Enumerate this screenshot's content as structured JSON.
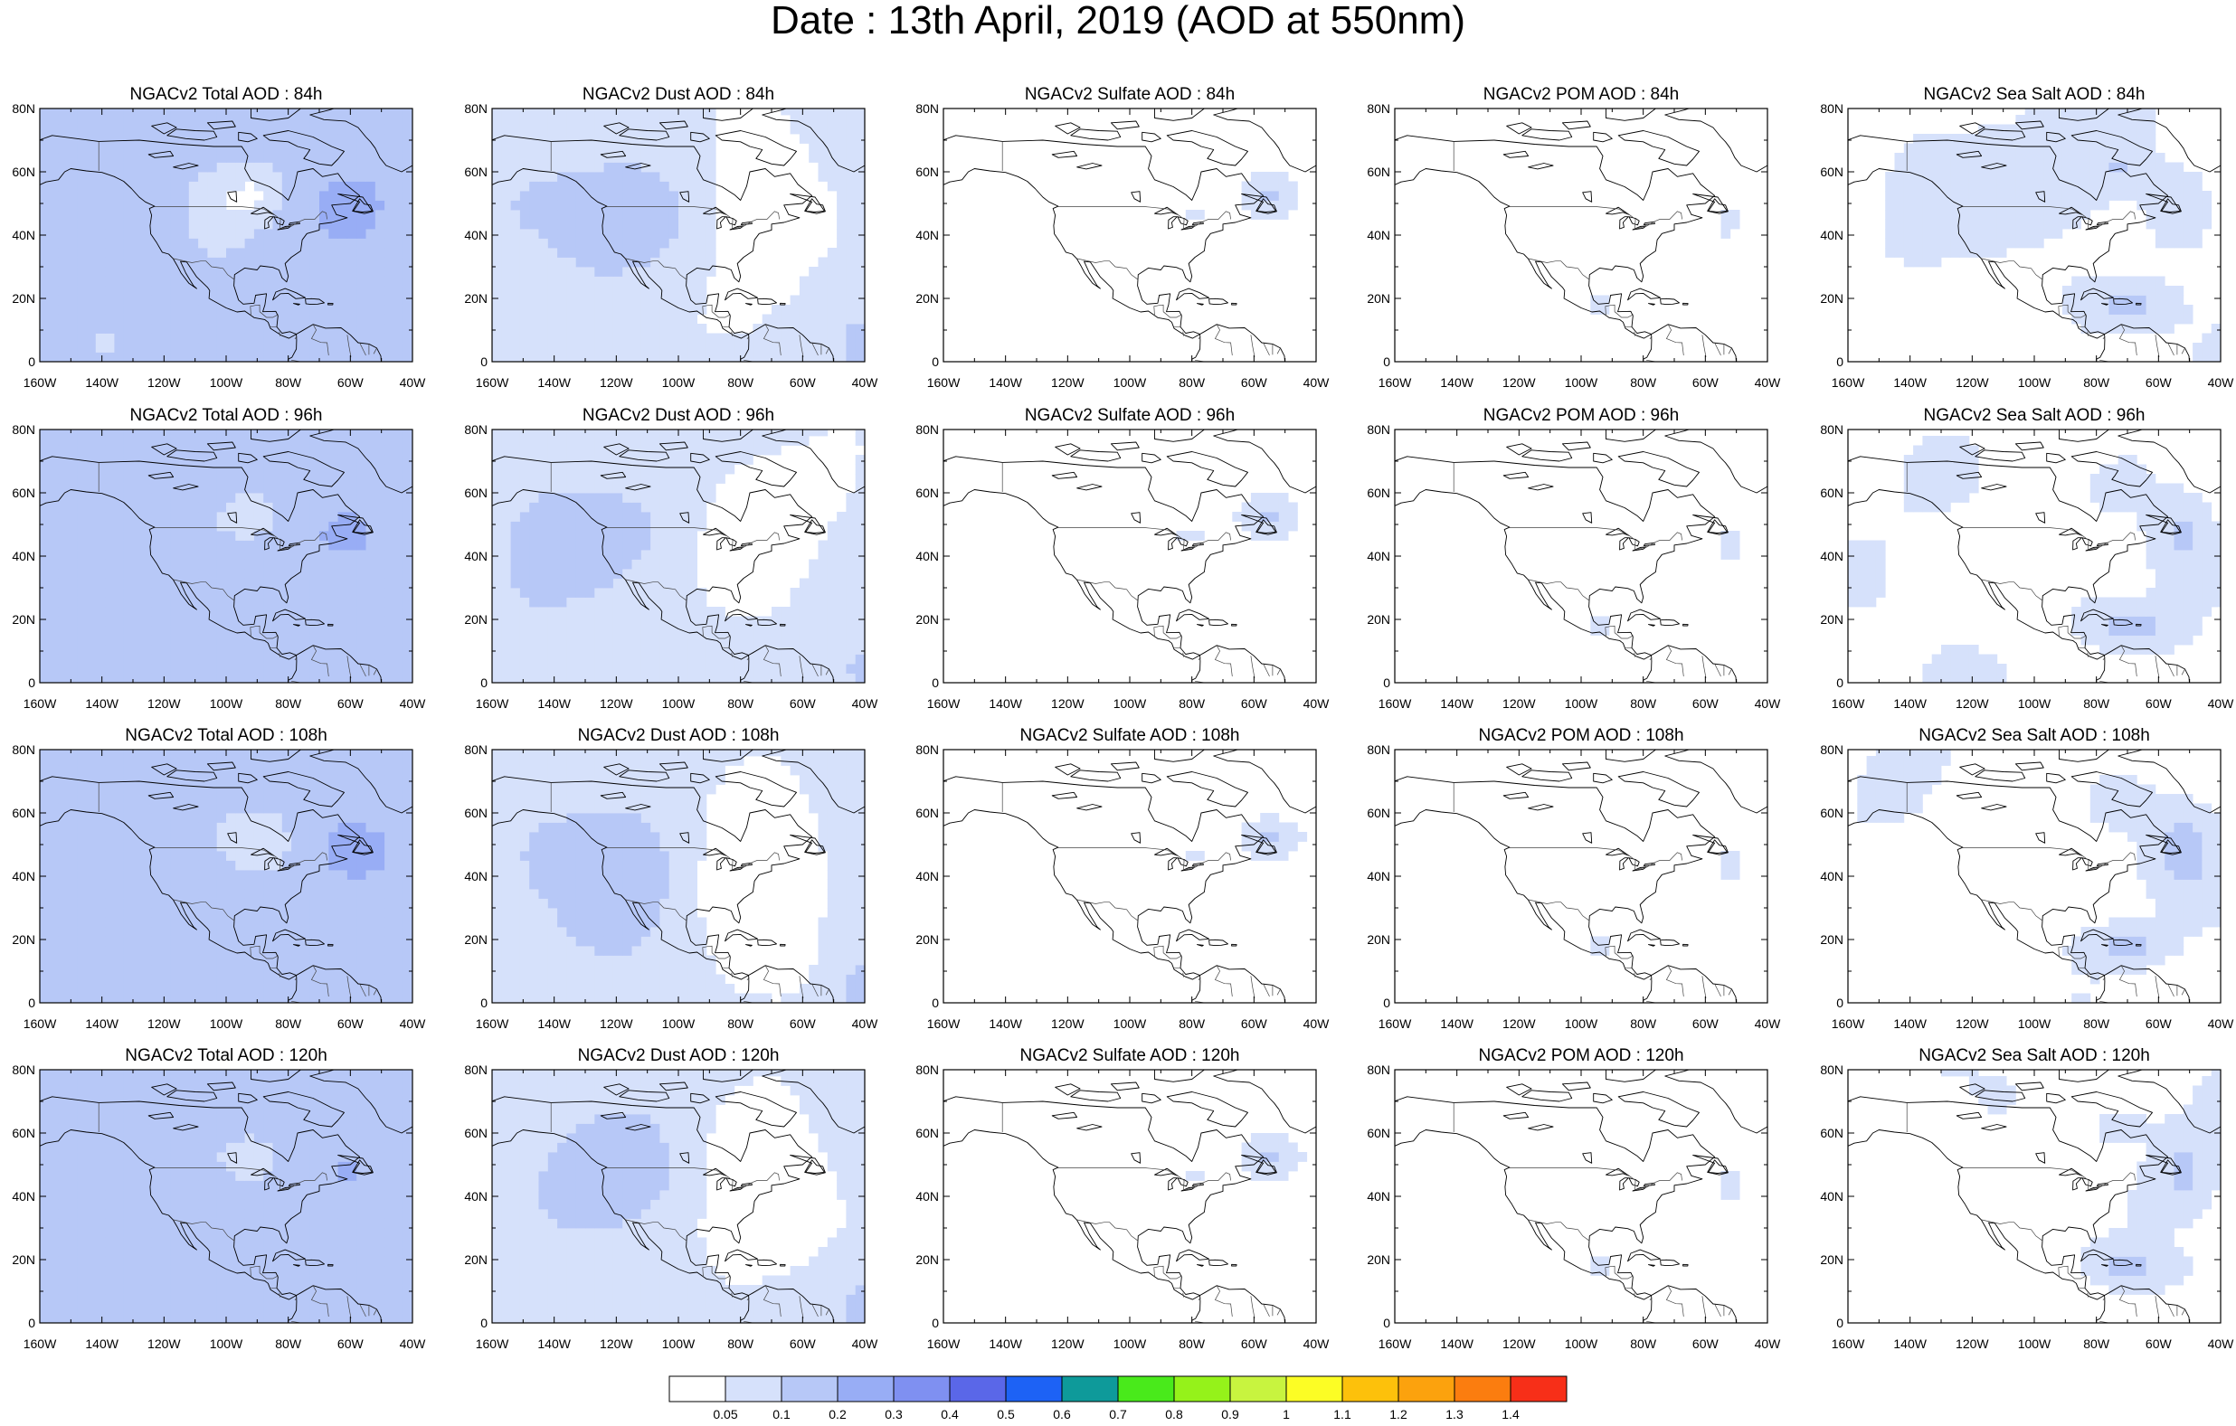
{
  "title": "Date : 13th April, 2019 (AOD at 550nm)",
  "row_labels": [
    "84h",
    "96h",
    "108h",
    "120h"
  ],
  "panels": [
    [
      "NGACv2 Total AOD : 84h",
      "NGACv2 Dust AOD : 84h",
      "NGACv2 Sulfate AOD : 84h",
      "NGACv2 POM AOD : 84h",
      "NGACv2 Sea Salt AOD : 84h"
    ],
    [
      "NGACv2 Total AOD : 96h",
      "NGACv2 Dust AOD : 96h",
      "NGACv2 Sulfate AOD : 96h",
      "NGACv2 POM AOD : 96h",
      "NGACv2 Sea Salt AOD : 96h"
    ],
    [
      "NGACv2 Total AOD : 108h",
      "NGACv2 Dust AOD : 108h",
      "NGACv2 Sulfate AOD : 108h",
      "NGACv2 POM AOD : 108h",
      "NGACv2 Sea Salt AOD : 108h"
    ],
    [
      "NGACv2 Total AOD : 120h",
      "NGACv2 Dust AOD : 120h",
      "NGACv2 Sulfate AOD : 120h",
      "NGACv2 POM AOD : 120h",
      "NGACv2 Sea Salt  AOD : 120h"
    ]
  ],
  "lat_ticks": [
    "80N",
    "60N",
    "40N",
    "20N",
    "0"
  ],
  "lon_ticks": [
    "160W",
    "140W",
    "120W",
    "100W",
    "80W",
    "60W",
    "40W"
  ],
  "colorbar": {
    "labels": [
      "0.05",
      "0.1",
      "0.2",
      "0.3",
      "0.4",
      "0.5",
      "0.6",
      "0.7",
      "0.8",
      "0.9",
      "1",
      "1.1",
      "1.2",
      "1.3",
      "1.4"
    ],
    "colors": [
      "#ffffff",
      "#d6e1fb",
      "#b7c8f7",
      "#98adf5",
      "#7f90f1",
      "#5a67e8",
      "#1d62f5",
      "#0e9a9a",
      "#49ea1b",
      "#95f21a",
      "#c8f43f",
      "#fcfd25",
      "#fdc10b",
      "#fca20d",
      "#fb7d0f",
      "#f72f18"
    ]
  },
  "colors": {
    "shade_light": "#d6e1fb",
    "shade_medium": "#b7c8f7",
    "shade_dark": "#98adf5",
    "coast": "#000000",
    "border": "#444444"
  }
}
